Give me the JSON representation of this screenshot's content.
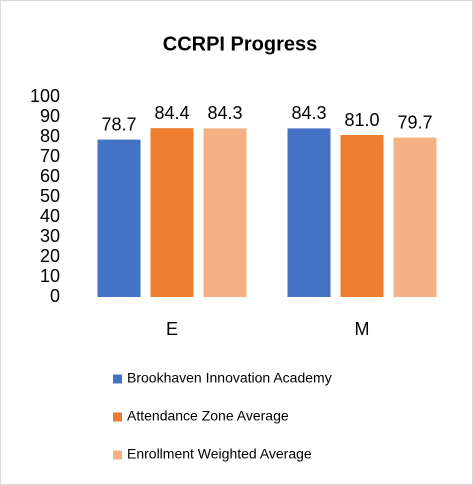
{
  "chart_data": {
    "type": "bar",
    "title": "CCRPI Progress",
    "categories": [
      "E",
      "M"
    ],
    "series": [
      {
        "name": "Brookhaven Innovation Academy",
        "color": "#4472c4",
        "values": [
          78.7,
          84.3
        ]
      },
      {
        "name": "Attendance Zone Average",
        "color": "#ed7d31",
        "values": [
          84.4,
          81.0
        ],
        "value_labels": [
          "84.4",
          "81.0"
        ]
      },
      {
        "name": "Enrollment Weighted Average",
        "color": "#f4b183",
        "values": [
          84.3,
          79.7
        ]
      }
    ],
    "ylim": [
      0,
      100
    ],
    "yticks": [
      0,
      10,
      20,
      30,
      40,
      50,
      60,
      70,
      80,
      90,
      100
    ],
    "grid": false,
    "legend": "bottom"
  }
}
